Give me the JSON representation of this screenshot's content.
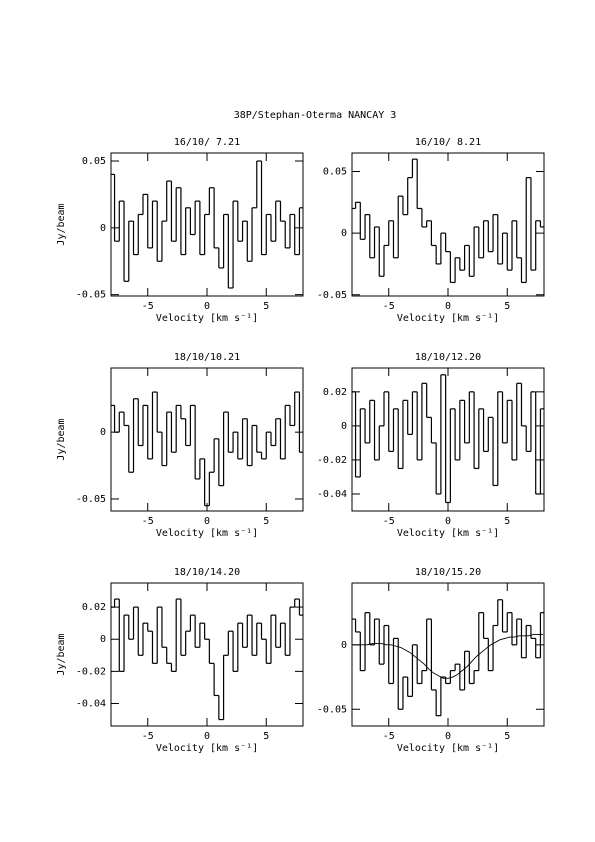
{
  "title": "38P/Stephan-Oterma   NANCAY     3",
  "chart_data": [
    {
      "type": "line",
      "title": "16/10/ 7.21",
      "xlabel": "Velocity [km s⁻¹]",
      "ylabel": "Jy/beam",
      "x": [
        -8,
        -7.6,
        -7.2,
        -6.8,
        -6.4,
        -6,
        -5.6,
        -5.2,
        -4.8,
        -4.4,
        -4,
        -3.6,
        -3.2,
        -2.8,
        -2.4,
        -2,
        -1.6,
        -1.2,
        -0.8,
        -0.4,
        0,
        0.4,
        0.8,
        1.2,
        1.6,
        2,
        2.4,
        2.8,
        3.2,
        3.6,
        4,
        4.4,
        4.8,
        5.2,
        5.6,
        6,
        6.4,
        6.8,
        7.2,
        7.6,
        8
      ],
      "series": [
        {
          "drawstyle": "steps-mid",
          "values": [
            0.04,
            -0.01,
            0.02,
            -0.04,
            0.005,
            -0.02,
            0.01,
            0.025,
            -0.015,
            0.02,
            -0.025,
            0.005,
            0.035,
            -0.01,
            0.03,
            -0.02,
            0.015,
            -0.005,
            0.02,
            -0.02,
            0.01,
            0.03,
            -0.015,
            -0.03,
            0.01,
            -0.045,
            0.02,
            -0.01,
            0.005,
            -0.025,
            0.015,
            0.05,
            -0.02,
            0.01,
            -0.01,
            0.02,
            0.005,
            -0.015,
            0.01,
            -0.02,
            0.015
          ]
        }
      ],
      "xlim": [
        -8.1,
        8.1
      ],
      "ylim": [
        -0.051,
        0.056
      ],
      "xticks": [
        -5,
        0,
        5
      ],
      "yticks": [
        -0.05,
        0,
        0.05
      ]
    },
    {
      "type": "line",
      "title": "16/10/ 8.21",
      "xlabel": "Velocity [km s⁻¹]",
      "x": [
        -8,
        -7.6,
        -7.2,
        -6.8,
        -6.4,
        -6,
        -5.6,
        -5.2,
        -4.8,
        -4.4,
        -4,
        -3.6,
        -3.2,
        -2.8,
        -2.4,
        -2,
        -1.6,
        -1.2,
        -0.8,
        -0.4,
        0,
        0.4,
        0.8,
        1.2,
        1.6,
        2,
        2.4,
        2.8,
        3.2,
        3.6,
        4,
        4.4,
        4.8,
        5.2,
        5.6,
        6,
        6.4,
        6.8,
        7.2,
        7.6,
        8
      ],
      "series": [
        {
          "drawstyle": "steps-mid",
          "values": [
            0.02,
            0.025,
            -0.005,
            0.015,
            -0.02,
            0.005,
            -0.035,
            -0.01,
            0.01,
            -0.02,
            0.03,
            0.015,
            0.045,
            0.06,
            0.02,
            0.005,
            0.01,
            -0.01,
            -0.025,
            0,
            -0.015,
            -0.04,
            -0.02,
            -0.03,
            -0.01,
            -0.035,
            0.005,
            -0.02,
            0.01,
            -0.015,
            0.015,
            -0.025,
            0,
            -0.03,
            0.01,
            -0.02,
            -0.04,
            0.045,
            -0.03,
            0.01,
            0.005
          ]
        }
      ],
      "xlim": [
        -8.1,
        8.1
      ],
      "ylim": [
        -0.051,
        0.065
      ],
      "xticks": [
        -5,
        0,
        5
      ],
      "yticks": [
        -0.05,
        0,
        0.05
      ]
    },
    {
      "type": "line",
      "title": "18/10/10.21",
      "xlabel": "Velocity [km s⁻¹]",
      "ylabel": "Jy/beam",
      "x": [
        -8,
        -7.6,
        -7.2,
        -6.8,
        -6.4,
        -6,
        -5.6,
        -5.2,
        -4.8,
        -4.4,
        -4,
        -3.6,
        -3.2,
        -2.8,
        -2.4,
        -2,
        -1.6,
        -1.2,
        -0.8,
        -0.4,
        0,
        0.4,
        0.8,
        1.2,
        1.6,
        2,
        2.4,
        2.8,
        3.2,
        3.6,
        4,
        4.4,
        4.8,
        5.2,
        5.6,
        6,
        6.4,
        6.8,
        7.2,
        7.6,
        8
      ],
      "series": [
        {
          "drawstyle": "steps-mid",
          "values": [
            0.02,
            0,
            0.015,
            0.005,
            -0.03,
            0.025,
            -0.01,
            0.02,
            -0.02,
            0.03,
            0,
            -0.025,
            0.015,
            -0.015,
            0.02,
            0.01,
            -0.01,
            0.02,
            -0.035,
            -0.02,
            -0.055,
            -0.03,
            -0.005,
            -0.04,
            0.015,
            -0.015,
            0,
            -0.02,
            0.01,
            -0.025,
            0.005,
            -0.015,
            -0.02,
            0,
            -0.01,
            0.01,
            -0.02,
            0.02,
            0.005,
            0.03,
            -0.015
          ]
        }
      ],
      "xlim": [
        -8.1,
        8.1
      ],
      "ylim": [
        -0.059,
        0.048
      ],
      "xticks": [
        -5,
        0,
        5
      ],
      "yticks": [
        -0.05,
        0
      ]
    },
    {
      "type": "line",
      "title": "18/10/12.20",
      "xlabel": "Velocity [km s⁻¹]",
      "x": [
        -8,
        -7.6,
        -7.2,
        -6.8,
        -6.4,
        -6,
        -5.6,
        -5.2,
        -4.8,
        -4.4,
        -4,
        -3.6,
        -3.2,
        -2.8,
        -2.4,
        -2,
        -1.6,
        -1.2,
        -0.8,
        -0.4,
        0,
        0.4,
        0.8,
        1.2,
        1.6,
        2,
        2.4,
        2.8,
        3.2,
        3.6,
        4,
        4.4,
        4.8,
        5.2,
        5.6,
        6,
        6.4,
        6.8,
        7.2,
        7.6,
        8
      ],
      "series": [
        {
          "drawstyle": "steps-mid",
          "values": [
            0.02,
            -0.03,
            0.01,
            -0.01,
            0.015,
            -0.02,
            0,
            0.02,
            -0.015,
            0.01,
            -0.025,
            0.015,
            -0.005,
            0.02,
            -0.02,
            0.025,
            0.005,
            -0.01,
            -0.04,
            0.03,
            -0.045,
            0.01,
            -0.02,
            0.015,
            -0.01,
            0.02,
            -0.025,
            0.01,
            -0.015,
            0.005,
            -0.035,
            0.02,
            -0.01,
            0.015,
            -0.02,
            0.025,
            0,
            -0.015,
            0.02,
            -0.04,
            0.01
          ]
        }
      ],
      "xlim": [
        -8.1,
        8.1
      ],
      "ylim": [
        -0.05,
        0.034
      ],
      "xticks": [
        -5,
        0,
        5
      ],
      "yticks": [
        -0.04,
        -0.02,
        0,
        0.02
      ]
    },
    {
      "type": "line",
      "title": "18/10/14.20",
      "xlabel": "Velocity [km s⁻¹]",
      "ylabel": "Jy/beam",
      "x": [
        -8,
        -7.6,
        -7.2,
        -6.8,
        -6.4,
        -6,
        -5.6,
        -5.2,
        -4.8,
        -4.4,
        -4,
        -3.6,
        -3.2,
        -2.8,
        -2.4,
        -2,
        -1.6,
        -1.2,
        -0.8,
        -0.4,
        0,
        0.4,
        0.8,
        1.2,
        1.6,
        2,
        2.4,
        2.8,
        3.2,
        3.6,
        4,
        4.4,
        4.8,
        5.2,
        5.6,
        6,
        6.4,
        6.8,
        7.2,
        7.6,
        8
      ],
      "series": [
        {
          "drawstyle": "steps-mid",
          "values": [
            0.02,
            0.025,
            -0.02,
            0.015,
            0,
            0.02,
            -0.01,
            0.01,
            0.005,
            -0.015,
            0.02,
            -0.005,
            -0.015,
            -0.02,
            0.025,
            -0.01,
            0.005,
            0.015,
            -0.005,
            0.01,
            0,
            -0.015,
            -0.035,
            -0.05,
            -0.01,
            0.005,
            -0.02,
            0.01,
            -0.005,
            0.015,
            -0.01,
            0.01,
            0,
            -0.015,
            0.015,
            -0.005,
            0.01,
            -0.01,
            0.02,
            0.025,
            0.015
          ]
        }
      ],
      "xlim": [
        -8.1,
        8.1
      ],
      "ylim": [
        -0.054,
        0.035
      ],
      "xticks": [
        -5,
        0,
        5
      ],
      "yticks": [
        -0.04,
        -0.02,
        0,
        0.02
      ]
    },
    {
      "type": "line",
      "title": "18/10/15.20",
      "xlabel": "Velocity [km s⁻¹]",
      "x": [
        -8,
        -7.6,
        -7.2,
        -6.8,
        -6.4,
        -6,
        -5.6,
        -5.2,
        -4.8,
        -4.4,
        -4,
        -3.6,
        -3.2,
        -2.8,
        -2.4,
        -2,
        -1.6,
        -1.2,
        -0.8,
        -0.4,
        0,
        0.4,
        0.8,
        1.2,
        1.6,
        2,
        2.4,
        2.8,
        3.2,
        3.6,
        4,
        4.4,
        4.8,
        5.2,
        5.6,
        6,
        6.4,
        6.8,
        7.2,
        7.6,
        8
      ],
      "series": [
        {
          "drawstyle": "steps-mid",
          "values": [
            0.02,
            0.01,
            -0.02,
            0.025,
            0,
            0.02,
            -0.015,
            0.015,
            -0.03,
            0.005,
            -0.05,
            -0.025,
            -0.04,
            0,
            -0.03,
            -0.02,
            0.02,
            -0.035,
            -0.055,
            -0.025,
            -0.03,
            -0.02,
            -0.015,
            -0.035,
            -0.005,
            -0.03,
            -0.02,
            0.025,
            0.005,
            -0.02,
            0.015,
            0.035,
            0.01,
            0.025,
            0,
            0.02,
            -0.01,
            0.015,
            0.005,
            -0.01,
            0.025
          ]
        },
        {
          "drawstyle": "default",
          "values": [
            0,
            0,
            0,
            0,
            0.001,
            0.001,
            0.001,
            0,
            0,
            -0.001,
            -0.002,
            -0.004,
            -0.006,
            -0.009,
            -0.012,
            -0.015,
            -0.019,
            -0.022,
            -0.024,
            -0.026,
            -0.026,
            -0.025,
            -0.023,
            -0.02,
            -0.017,
            -0.013,
            -0.009,
            -0.006,
            -0.003,
            0,
            0.002,
            0.004,
            0.005,
            0.006,
            0.006,
            0.007,
            0.007,
            0.007,
            0.008,
            0.008,
            0.008
          ]
        }
      ],
      "xlim": [
        -8.1,
        8.1
      ],
      "ylim": [
        -0.063,
        0.048
      ],
      "xticks": [
        -5,
        0,
        5
      ],
      "yticks": [
        -0.05,
        0
      ]
    }
  ]
}
